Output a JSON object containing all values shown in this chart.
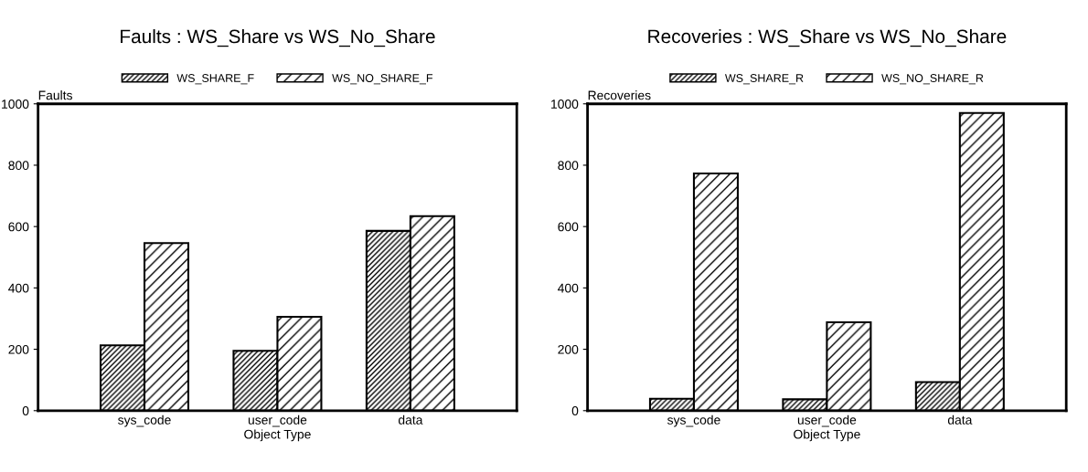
{
  "chart_data": [
    {
      "type": "bar",
      "title": "Faults : WS_Share vs WS_No_Share",
      "xlabel": "Object Type",
      "ylabel": "Faults",
      "categories": [
        "sys_code",
        "user_code",
        "data"
      ],
      "series": [
        {
          "name": "WS_SHARE_F",
          "color": "#000000",
          "values": [
            213,
            195,
            586
          ]
        },
        {
          "name": "WS_NO_SHARE_F",
          "color": "#000000",
          "values": [
            546,
            306,
            634
          ]
        }
      ],
      "ylim": [
        0,
        1000
      ],
      "yticks": [
        0,
        200,
        400,
        600,
        800,
        1000
      ],
      "grid": false,
      "legend": "top"
    },
    {
      "type": "bar",
      "title": "Recoveries : WS_Share vs WS_No_Share",
      "xlabel": "Object Type",
      "ylabel": "Recoveries",
      "categories": [
        "sys_code",
        "user_code",
        "data"
      ],
      "series": [
        {
          "name": "WS_SHARE_R",
          "color": "#000000",
          "values": [
            39,
            37,
            93
          ]
        },
        {
          "name": "WS_NO_SHARE_R",
          "color": "#000000",
          "values": [
            773,
            288,
            970
          ]
        }
      ],
      "ylim": [
        0,
        1000
      ],
      "yticks": [
        0,
        200,
        400,
        600,
        800,
        1000
      ],
      "grid": false,
      "legend": "top"
    }
  ]
}
